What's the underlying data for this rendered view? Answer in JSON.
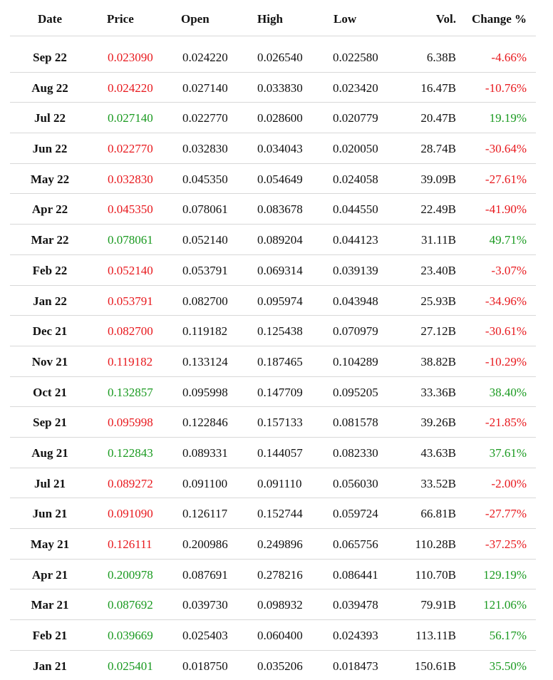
{
  "table": {
    "headers": {
      "date": "Date",
      "price": "Price",
      "open": "Open",
      "high": "High",
      "low": "Low",
      "vol": "Vol.",
      "change": "Change %"
    },
    "colors": {
      "down": "#e8181d",
      "up": "#1a9a20"
    },
    "rows": [
      {
        "date": "Sep 22",
        "price": "0.023090",
        "open": "0.024220",
        "high": "0.026540",
        "low": "0.022580",
        "vol": "6.38B",
        "change": "-4.66%",
        "trend": "down"
      },
      {
        "date": "Aug 22",
        "price": "0.024220",
        "open": "0.027140",
        "high": "0.033830",
        "low": "0.023420",
        "vol": "16.47B",
        "change": "-10.76%",
        "trend": "down"
      },
      {
        "date": "Jul 22",
        "price": "0.027140",
        "open": "0.022770",
        "high": "0.028600",
        "low": "0.020779",
        "vol": "20.47B",
        "change": "19.19%",
        "trend": "up"
      },
      {
        "date": "Jun 22",
        "price": "0.022770",
        "open": "0.032830",
        "high": "0.034043",
        "low": "0.020050",
        "vol": "28.74B",
        "change": "-30.64%",
        "trend": "down"
      },
      {
        "date": "May 22",
        "price": "0.032830",
        "open": "0.045350",
        "high": "0.054649",
        "low": "0.024058",
        "vol": "39.09B",
        "change": "-27.61%",
        "trend": "down"
      },
      {
        "date": "Apr 22",
        "price": "0.045350",
        "open": "0.078061",
        "high": "0.083678",
        "low": "0.044550",
        "vol": "22.49B",
        "change": "-41.90%",
        "trend": "down"
      },
      {
        "date": "Mar 22",
        "price": "0.078061",
        "open": "0.052140",
        "high": "0.089204",
        "low": "0.044123",
        "vol": "31.11B",
        "change": "49.71%",
        "trend": "up"
      },
      {
        "date": "Feb 22",
        "price": "0.052140",
        "open": "0.053791",
        "high": "0.069314",
        "low": "0.039139",
        "vol": "23.40B",
        "change": "-3.07%",
        "trend": "down"
      },
      {
        "date": "Jan 22",
        "price": "0.053791",
        "open": "0.082700",
        "high": "0.095974",
        "low": "0.043948",
        "vol": "25.93B",
        "change": "-34.96%",
        "trend": "down"
      },
      {
        "date": "Dec 21",
        "price": "0.082700",
        "open": "0.119182",
        "high": "0.125438",
        "low": "0.070979",
        "vol": "27.12B",
        "change": "-30.61%",
        "trend": "down"
      },
      {
        "date": "Nov 21",
        "price": "0.119182",
        "open": "0.133124",
        "high": "0.187465",
        "low": "0.104289",
        "vol": "38.82B",
        "change": "-10.29%",
        "trend": "down"
      },
      {
        "date": "Oct 21",
        "price": "0.132857",
        "open": "0.095998",
        "high": "0.147709",
        "low": "0.095205",
        "vol": "33.36B",
        "change": "38.40%",
        "trend": "up"
      },
      {
        "date": "Sep 21",
        "price": "0.095998",
        "open": "0.122846",
        "high": "0.157133",
        "low": "0.081578",
        "vol": "39.26B",
        "change": "-21.85%",
        "trend": "down"
      },
      {
        "date": "Aug 21",
        "price": "0.122843",
        "open": "0.089331",
        "high": "0.144057",
        "low": "0.082330",
        "vol": "43.63B",
        "change": "37.61%",
        "trend": "up"
      },
      {
        "date": "Jul 21",
        "price": "0.089272",
        "open": "0.091100",
        "high": "0.091110",
        "low": "0.056030",
        "vol": "33.52B",
        "change": "-2.00%",
        "trend": "down"
      },
      {
        "date": "Jun 21",
        "price": "0.091090",
        "open": "0.126117",
        "high": "0.152744",
        "low": "0.059724",
        "vol": "66.81B",
        "change": "-27.77%",
        "trend": "down"
      },
      {
        "date": "May 21",
        "price": "0.126111",
        "open": "0.200986",
        "high": "0.249896",
        "low": "0.065756",
        "vol": "110.28B",
        "change": "-37.25%",
        "trend": "down"
      },
      {
        "date": "Apr 21",
        "price": "0.200978",
        "open": "0.087691",
        "high": "0.278216",
        "low": "0.086441",
        "vol": "110.70B",
        "change": "129.19%",
        "trend": "up"
      },
      {
        "date": "Mar 21",
        "price": "0.087692",
        "open": "0.039730",
        "high": "0.098932",
        "low": "0.039478",
        "vol": "79.91B",
        "change": "121.06%",
        "trend": "up"
      },
      {
        "date": "Feb 21",
        "price": "0.039669",
        "open": "0.025403",
        "high": "0.060400",
        "low": "0.024393",
        "vol": "113.11B",
        "change": "56.17%",
        "trend": "up"
      },
      {
        "date": "Jan 21",
        "price": "0.025401",
        "open": "0.018750",
        "high": "0.035206",
        "low": "0.018473",
        "vol": "150.61B",
        "change": "35.50%",
        "trend": "up"
      }
    ]
  }
}
